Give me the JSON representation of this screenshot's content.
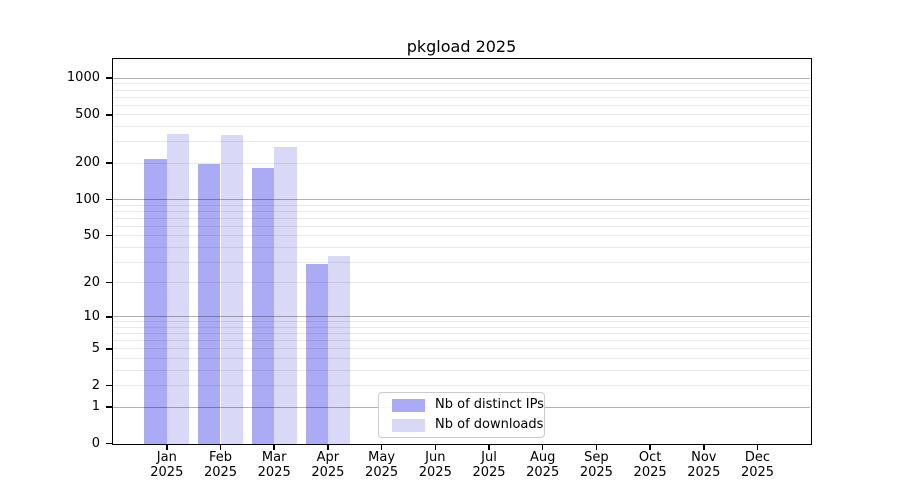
{
  "title": "pkgload 2025",
  "colors": {
    "ips": "#aaaaf5",
    "downloads": "#d9d9f7",
    "major_grid": "#b3b3b3",
    "minor_grid": "#e8e8e8",
    "spine": "#000000",
    "background": "#ffffff",
    "legend_border": "#cccccc"
  },
  "y_axis": {
    "tick_labels": [
      "0",
      "1",
      "2",
      "5",
      "10",
      "20",
      "50",
      "100",
      "200",
      "500",
      "1000"
    ]
  },
  "x_axis": {
    "months": [
      "Jan",
      "Feb",
      "Mar",
      "Apr",
      "May",
      "Jun",
      "Jul",
      "Aug",
      "Sep",
      "Oct",
      "Nov",
      "Dec"
    ],
    "year": "2025"
  },
  "chart_data": {
    "type": "bar",
    "title": "pkgload 2025",
    "categories": [
      "Jan 2025",
      "Feb 2025",
      "Mar 2025",
      "Apr 2025",
      "May 2025",
      "Jun 2025",
      "Jul 2025",
      "Aug 2025",
      "Sep 2025",
      "Oct 2025",
      "Nov 2025",
      "Dec 2025"
    ],
    "series": [
      {
        "name": "Nb of distinct IPs",
        "key": "ips",
        "color": "#aaaaf5",
        "values": [
          217,
          196,
          184,
          29,
          0,
          0,
          0,
          0,
          0,
          0,
          0,
          0
        ]
      },
      {
        "name": "Nb of downloads",
        "key": "downloads",
        "color": "#d9d9f7",
        "values": [
          345,
          340,
          272,
          34,
          0,
          0,
          0,
          0,
          0,
          0,
          0,
          0
        ]
      }
    ],
    "yscale": "log1p",
    "ylim": [
      0,
      1440
    ],
    "yticks": [
      0,
      1,
      2,
      5,
      10,
      20,
      50,
      100,
      200,
      500,
      1000
    ],
    "major_grid_at": [
      1,
      10,
      100,
      1000
    ],
    "grid": "horizontal major+minor, drawn over bars",
    "legend_position": "inside, lower center-left",
    "xlabel": "",
    "ylabel": ""
  }
}
